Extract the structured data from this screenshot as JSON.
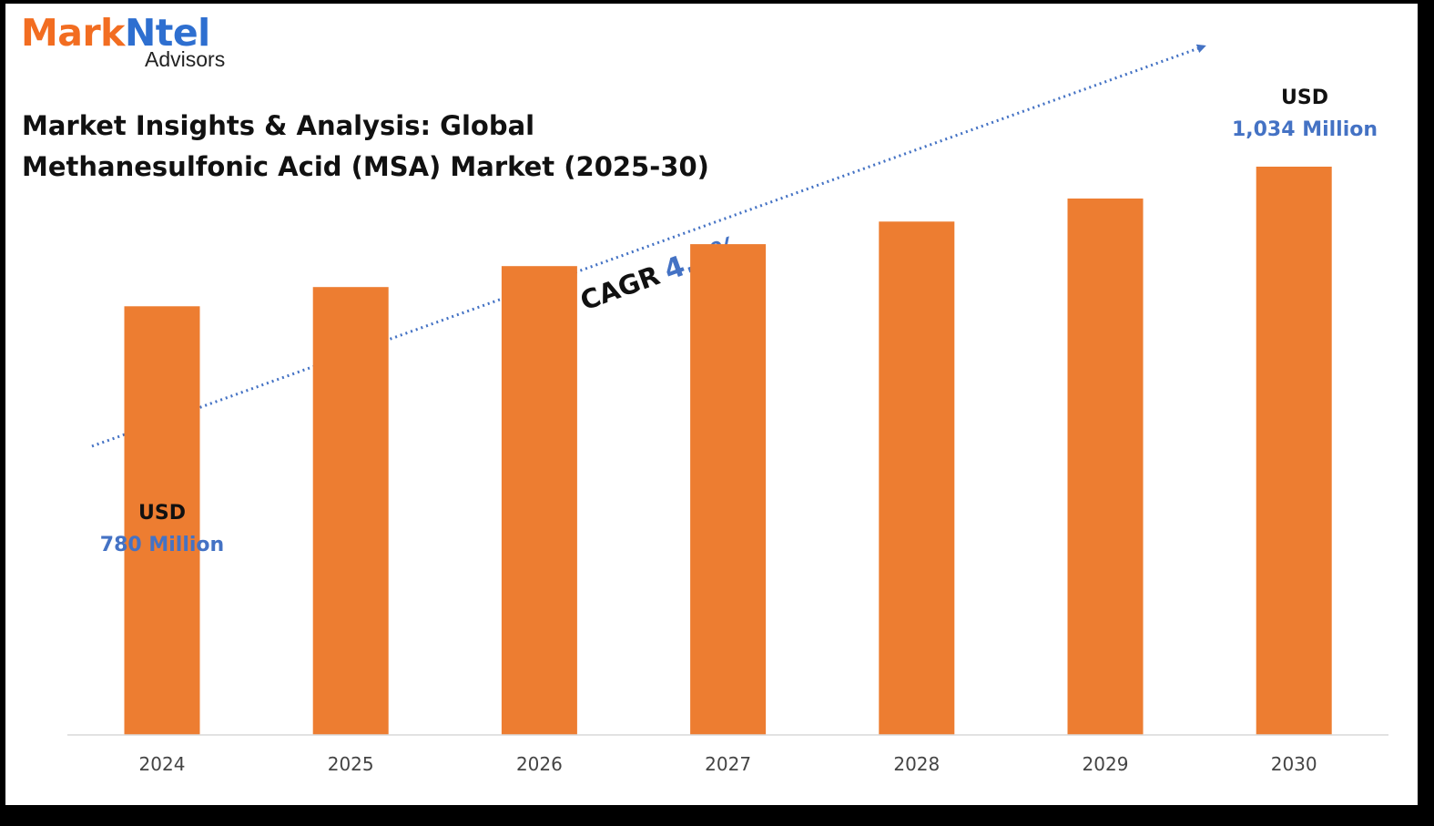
{
  "brand": {
    "name_part1": "Mark",
    "name_part2": "Ntel",
    "subtitle": "Advisors"
  },
  "title": "Market Insights & Analysis: Global Methanesulfonic Acid (MSA) Market (2025-30)",
  "annotations": {
    "start": {
      "currency": "USD",
      "value": "780 Million"
    },
    "end": {
      "currency": "USD",
      "value": "1,034 Million"
    },
    "cagr": {
      "label": "CAGR",
      "value": "4.7%"
    }
  },
  "colors": {
    "bar": "#ed7d31",
    "accent": "#4472c4",
    "brand_orange": "#f26d21",
    "brand_blue": "#2e6fd0"
  },
  "chart_data": {
    "type": "bar",
    "title": "Market Insights & Analysis: Global Methanesulfonic Acid (MSA) Market (2025-30)",
    "categories": [
      "2024",
      "2025",
      "2026",
      "2027",
      "2028",
      "2029",
      "2030"
    ],
    "values": [
      780,
      815,
      853,
      893,
      934,
      976,
      1034
    ],
    "unit": "USD Million",
    "xlabel": "",
    "ylabel": "",
    "ylim": [
      0,
      1034
    ],
    "grid": false,
    "legend": "none",
    "data_labels": {
      "2024": "USD 780 Million",
      "2030": "USD 1,034 Million"
    },
    "trend": {
      "label": "CAGR",
      "value": "4.7%",
      "style": "dotted-arrow"
    }
  }
}
